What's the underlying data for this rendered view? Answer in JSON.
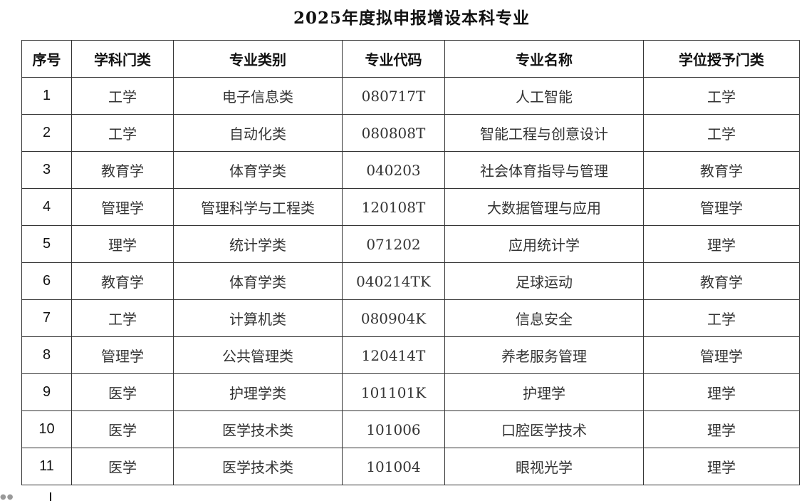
{
  "title": "2025年度拟申报增设本科专业",
  "table": {
    "headers": [
      "序号",
      "学科门类",
      "专业类别",
      "专业代码",
      "专业名称",
      "学位授予门类"
    ],
    "rows": [
      [
        "1",
        "工学",
        "电子信息类",
        "080717T",
        "人工智能",
        "工学"
      ],
      [
        "2",
        "工学",
        "自动化类",
        "080808T",
        "智能工程与创意设计",
        "工学"
      ],
      [
        "3",
        "教育学",
        "体育学类",
        "040203",
        "社会体育指导与管理",
        "教育学"
      ],
      [
        "4",
        "管理学",
        "管理科学与工程类",
        "120108T",
        "大数据管理与应用",
        "管理学"
      ],
      [
        "5",
        "理学",
        "统计学类",
        "071202",
        "应用统计学",
        "理学"
      ],
      [
        "6",
        "教育学",
        "体育学类",
        "040214TK",
        "足球运动",
        "教育学"
      ],
      [
        "7",
        "工学",
        "计算机类",
        "080904K",
        "信息安全",
        "工学"
      ],
      [
        "8",
        "管理学",
        "公共管理类",
        "120414T",
        "养老服务管理",
        "管理学"
      ],
      [
        "9",
        "医学",
        "护理学类",
        "101101K",
        "护理学",
        "理学"
      ],
      [
        "10",
        "医学",
        "医学技术类",
        "101006",
        "口腔医学技术",
        "理学"
      ],
      [
        "11",
        "医学",
        "医学技术类",
        "101004",
        "眼视光学",
        "理学"
      ]
    ]
  }
}
